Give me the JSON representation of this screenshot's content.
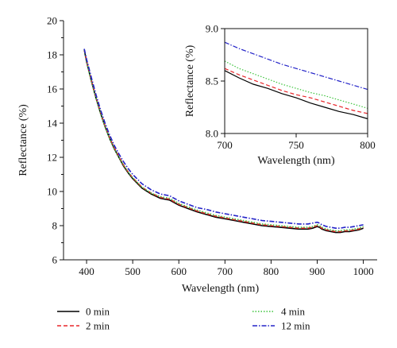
{
  "chart_data": [
    {
      "type": "line",
      "xlabel": "Wavelength (nm)",
      "ylabel": "Reflectance (%)",
      "xlim": [
        350,
        1030
      ],
      "ylim": [
        6,
        20
      ],
      "xticks": [
        400,
        500,
        600,
        700,
        800,
        900,
        1000
      ],
      "yticks": [
        6,
        8,
        10,
        12,
        14,
        16,
        18,
        20
      ],
      "legend_placement": "bottom",
      "series": [
        {
          "name": "0 min",
          "color": "#000000",
          "style": "solid",
          "x": [
            395,
            400,
            410,
            420,
            430,
            440,
            450,
            460,
            470,
            480,
            490,
            500,
            520,
            540,
            560,
            580,
            600,
            620,
            640,
            660,
            680,
            700,
            720,
            740,
            760,
            780,
            800,
            820,
            840,
            860,
            880,
            890,
            900,
            905,
            910,
            920,
            930,
            940,
            950,
            960,
            970,
            980,
            990,
            1000
          ],
          "y": [
            18.3,
            17.6,
            16.5,
            15.5,
            14.6,
            13.8,
            13.1,
            12.5,
            12.0,
            11.5,
            11.1,
            10.75,
            10.2,
            9.85,
            9.6,
            9.5,
            9.2,
            9.0,
            8.8,
            8.65,
            8.5,
            8.4,
            8.3,
            8.2,
            8.1,
            8.0,
            7.95,
            7.9,
            7.85,
            7.8,
            7.8,
            7.85,
            7.95,
            7.9,
            7.8,
            7.7,
            7.65,
            7.6,
            7.6,
            7.65,
            7.65,
            7.7,
            7.75,
            7.85
          ]
        },
        {
          "name": "2 min",
          "color": "#e8262a",
          "style": "dashed",
          "x": [
            395,
            400,
            410,
            420,
            430,
            440,
            450,
            460,
            470,
            480,
            490,
            500,
            520,
            540,
            560,
            580,
            600,
            620,
            640,
            660,
            680,
            700,
            720,
            740,
            760,
            780,
            800,
            820,
            840,
            860,
            880,
            890,
            900,
            905,
            910,
            920,
            930,
            940,
            950,
            960,
            970,
            980,
            990,
            1000
          ],
          "y": [
            18.3,
            17.65,
            16.55,
            15.55,
            14.65,
            13.85,
            13.15,
            12.55,
            12.05,
            11.55,
            11.15,
            10.8,
            10.25,
            9.9,
            9.65,
            9.55,
            9.25,
            9.05,
            8.85,
            8.7,
            8.55,
            8.45,
            8.35,
            8.25,
            8.15,
            8.05,
            8.0,
            7.95,
            7.9,
            7.85,
            7.85,
            7.9,
            8.0,
            7.95,
            7.85,
            7.75,
            7.7,
            7.65,
            7.65,
            7.7,
            7.7,
            7.75,
            7.8,
            7.9
          ]
        },
        {
          "name": "4 min",
          "color": "#3cc43c",
          "style": "dotted",
          "x": [
            395,
            400,
            410,
            420,
            430,
            440,
            450,
            460,
            470,
            480,
            490,
            500,
            520,
            540,
            560,
            580,
            600,
            620,
            640,
            660,
            680,
            700,
            720,
            740,
            760,
            780,
            800,
            820,
            840,
            860,
            880,
            890,
            900,
            905,
            910,
            920,
            930,
            940,
            950,
            960,
            970,
            980,
            990,
            1000
          ],
          "y": [
            18.3,
            17.6,
            16.5,
            15.5,
            14.6,
            13.8,
            13.1,
            12.5,
            12.0,
            11.55,
            11.15,
            10.8,
            10.25,
            9.9,
            9.7,
            9.6,
            9.3,
            9.1,
            8.9,
            8.75,
            8.6,
            8.5,
            8.4,
            8.3,
            8.2,
            8.1,
            8.05,
            8.0,
            7.95,
            7.9,
            7.9,
            7.95,
            8.05,
            8.0,
            7.9,
            7.8,
            7.75,
            7.7,
            7.7,
            7.75,
            7.75,
            7.8,
            7.85,
            7.95
          ]
        },
        {
          "name": "12 min",
          "color": "#2323c8",
          "style": "dashdot",
          "x": [
            395,
            400,
            410,
            420,
            430,
            440,
            450,
            460,
            470,
            480,
            490,
            500,
            520,
            540,
            560,
            580,
            600,
            620,
            640,
            660,
            680,
            700,
            720,
            740,
            760,
            780,
            800,
            820,
            840,
            860,
            880,
            890,
            900,
            905,
            910,
            920,
            930,
            940,
            950,
            960,
            970,
            980,
            990,
            1000
          ],
          "y": [
            18.35,
            17.75,
            16.7,
            15.7,
            14.8,
            14.0,
            13.3,
            12.7,
            12.2,
            11.75,
            11.35,
            11.0,
            10.45,
            10.1,
            9.85,
            9.75,
            9.45,
            9.25,
            9.05,
            8.95,
            8.8,
            8.7,
            8.6,
            8.5,
            8.4,
            8.3,
            8.25,
            8.2,
            8.15,
            8.1,
            8.1,
            8.15,
            8.2,
            8.15,
            8.05,
            7.95,
            7.9,
            7.85,
            7.85,
            7.9,
            7.9,
            7.95,
            8.0,
            8.05
          ]
        }
      ]
    },
    {
      "type": "line",
      "role": "inset",
      "xlabel": "Wavelength (nm)",
      "ylabel": "Reflectance (%)",
      "xlim": [
        700,
        800
      ],
      "ylim": [
        8.0,
        9.0
      ],
      "xticks": [
        700,
        750,
        800
      ],
      "yticks": [
        8.0,
        8.5,
        9.0
      ],
      "ytick_labels": [
        "8.0",
        "8.5",
        "9.0"
      ],
      "series": [
        {
          "name": "0 min",
          "color": "#000000",
          "style": "solid",
          "x": [
            700,
            710,
            720,
            730,
            740,
            750,
            760,
            770,
            780,
            790,
            800
          ],
          "y": [
            8.6,
            8.53,
            8.47,
            8.43,
            8.38,
            8.34,
            8.29,
            8.25,
            8.21,
            8.18,
            8.14
          ]
        },
        {
          "name": "2 min",
          "color": "#e8262a",
          "style": "dashed",
          "x": [
            700,
            710,
            720,
            730,
            740,
            750,
            760,
            770,
            780,
            790,
            800
          ],
          "y": [
            8.62,
            8.56,
            8.51,
            8.46,
            8.41,
            8.37,
            8.34,
            8.3,
            8.26,
            8.22,
            8.19
          ]
        },
        {
          "name": "4 min",
          "color": "#3cc43c",
          "style": "dotted",
          "x": [
            700,
            710,
            720,
            730,
            740,
            750,
            760,
            770,
            780,
            790,
            800
          ],
          "y": [
            8.69,
            8.62,
            8.57,
            8.52,
            8.47,
            8.43,
            8.39,
            8.36,
            8.32,
            8.28,
            8.24
          ]
        },
        {
          "name": "12 min",
          "color": "#2323c8",
          "style": "dashdot",
          "x": [
            700,
            710,
            720,
            730,
            740,
            750,
            760,
            770,
            780,
            790,
            800
          ],
          "y": [
            8.87,
            8.81,
            8.76,
            8.71,
            8.66,
            8.62,
            8.58,
            8.54,
            8.5,
            8.46,
            8.42
          ]
        }
      ]
    }
  ]
}
